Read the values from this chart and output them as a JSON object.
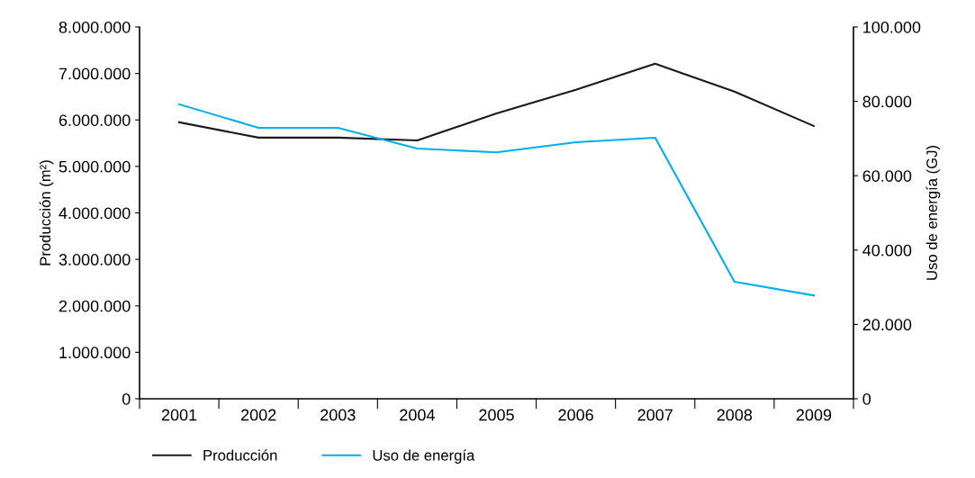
{
  "chart_data": {
    "type": "line",
    "categories": [
      "2001",
      "2002",
      "2003",
      "2004",
      "2005",
      "2006",
      "2007",
      "2008",
      "2009"
    ],
    "ylabel": "Producción (m²)",
    "y2label": "Uso de energía (GJ)",
    "series": [
      {
        "name": "Producción",
        "color": "#1a1a1a",
        "values": [
          5950000,
          5620000,
          5620000,
          5560000,
          6140000,
          6650000,
          7210000,
          6610000,
          5870000
        ]
      },
      {
        "name": "Uso de energía",
        "color": "#00aeef",
        "axis": "y2",
        "values": [
          79200,
          72900,
          72900,
          67300,
          66300,
          69000,
          70200,
          31500,
          27800
        ]
      }
    ],
    "ylim": [
      0,
      8000000
    ],
    "yticks": [
      0,
      {
        "value": 1000000,
        "label": "1.000.000"
      },
      {
        "value": 2000000,
        "label": "2.000.000"
      },
      {
        "value": 3000000,
        "label": "3.000.000"
      },
      {
        "value": 4000000,
        "label": "4.000.000"
      },
      {
        "value": 5000000,
        "label": "5.000.000"
      },
      {
        "value": 6000000,
        "label": "6.000.000"
      },
      {
        "value": 7000000,
        "label": "7.000.000"
      },
      {
        "value": 8000000,
        "label": "8.000.000"
      }
    ],
    "y2lim": [
      0,
      100000
    ],
    "y2ticks": [
      0,
      {
        "value": 20000,
        "label": "20.000"
      },
      {
        "value": 40000,
        "label": "40.000"
      },
      {
        "value": 60000,
        "label": "60.000"
      },
      {
        "value": 80000,
        "label": "80.000"
      },
      {
        "value": 100000,
        "label": "100.000"
      }
    ],
    "legend": "bottom",
    "grid": false,
    "marker": "none",
    "line_style": "solid"
  }
}
